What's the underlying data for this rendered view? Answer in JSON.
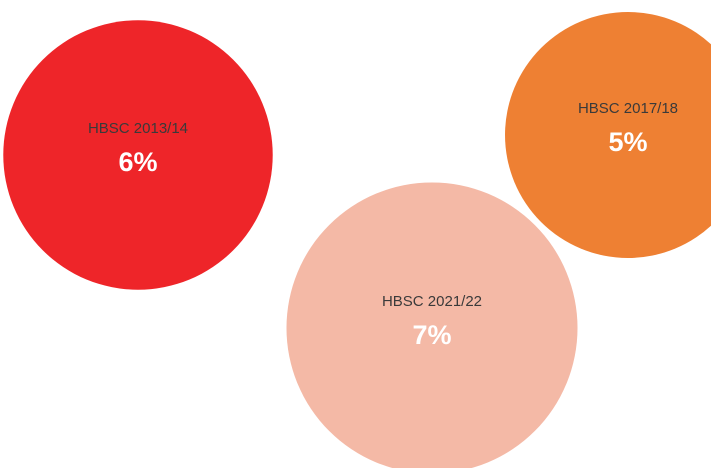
{
  "chart_data": {
    "type": "bubble",
    "categories": [
      "HBSC 2013/14",
      "HBSC 2017/18",
      "HBSC 2021/22"
    ],
    "values": [
      6,
      5,
      7
    ],
    "value_labels": [
      "6%",
      "5%",
      "7%"
    ],
    "colors": [
      "#ee2529",
      "#ee8033",
      "#f4b9a6"
    ]
  }
}
